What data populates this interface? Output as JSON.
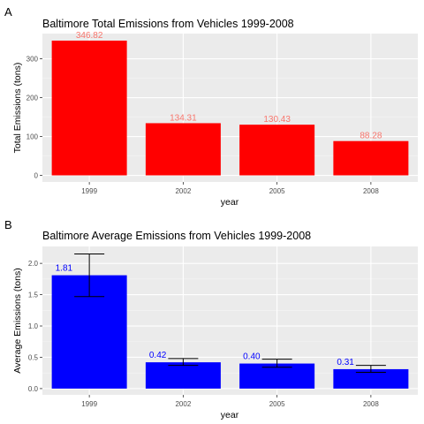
{
  "chart_data": [
    {
      "panel": "A",
      "type": "bar",
      "title": "Baltimore Total Emissions from Vehicles 1999-2008",
      "xlabel": "year",
      "ylabel": "Total Emissions (tons)",
      "categories": [
        "1999",
        "2002",
        "2005",
        "2008"
      ],
      "values": [
        346.82,
        134.31,
        130.43,
        88.28
      ],
      "data_labels": [
        "346.82",
        "134.31",
        "130.43",
        "88.28"
      ],
      "ylim": [
        -17,
        365
      ],
      "yticks": [
        0,
        100,
        200,
        300
      ],
      "bar_color": "#ff0000",
      "label_color": "#f8766d",
      "grid": true
    },
    {
      "panel": "B",
      "type": "bar",
      "title": "Baltimore Average Emissions from Vehicles 1999-2008",
      "xlabel": "year",
      "ylabel": "Average Emissions (tons)",
      "categories": [
        "1999",
        "2002",
        "2005",
        "2008"
      ],
      "values": [
        1.81,
        0.42,
        0.4,
        0.31
      ],
      "data_labels": [
        "1.81",
        "0.42",
        "0.40",
        "0.31"
      ],
      "error_low": [
        1.47,
        0.37,
        0.34,
        0.26
      ],
      "error_high": [
        2.15,
        0.48,
        0.47,
        0.37
      ],
      "ylim": [
        -0.1,
        2.27
      ],
      "yticks": [
        0.0,
        0.5,
        1.0,
        1.5,
        2.0
      ],
      "ytick_labels": [
        "0.0",
        "0.5",
        "1.0",
        "1.5",
        "2.0"
      ],
      "bar_color": "#0000ff",
      "label_color": "#0000ff",
      "error_color": "#000000",
      "grid": true
    }
  ]
}
